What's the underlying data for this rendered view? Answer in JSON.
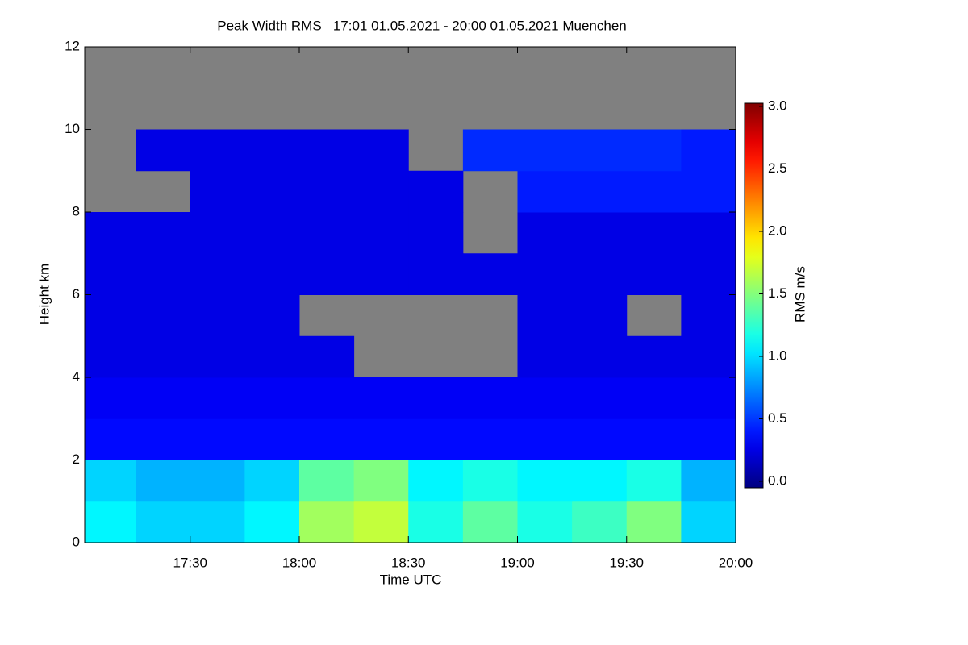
{
  "chart_data": {
    "type": "heatmap",
    "title": "Peak Width RMS   17:01 01.05.2021 - 20:00 01.05.2021 Muenchen",
    "x_label": "Time UTC",
    "y_label": "Height km",
    "colorbar_label": "RMS m/s",
    "xlim": [
      17.0167,
      20.0
    ],
    "xticks": [
      {
        "value": 17.5,
        "label": "17:30"
      },
      {
        "value": 18.0,
        "label": "18:00"
      },
      {
        "value": 18.5,
        "label": "18:30"
      },
      {
        "value": 19.0,
        "label": "19:00"
      },
      {
        "value": 19.5,
        "label": "19:30"
      },
      {
        "value": 20.0,
        "label": "20:00"
      }
    ],
    "ylim": [
      0,
      12
    ],
    "yticks": [
      0,
      2,
      4,
      6,
      8,
      10,
      12
    ],
    "clim": [
      0,
      3
    ],
    "cticks": [
      {
        "value": 0,
        "label": "0.0"
      },
      {
        "value": 0.5,
        "label": "0.5"
      },
      {
        "value": 1,
        "label": "1.0"
      },
      {
        "value": 1.5,
        "label": "1.5"
      },
      {
        "value": 2,
        "label": "2.0"
      },
      {
        "value": 2.5,
        "label": "2.5"
      },
      {
        "value": 3,
        "label": "3.0"
      }
    ],
    "missing_color": "#808080",
    "xbins": [
      17.0,
      17.25,
      17.5,
      17.75,
      18.0,
      18.25,
      18.5,
      18.75,
      19.0,
      19.25,
      19.5,
      19.75,
      20.0
    ],
    "ybins": [
      0,
      1,
      2,
      3,
      4,
      5,
      6,
      7,
      8,
      9,
      10,
      11,
      12
    ],
    "z": [
      [
        1.1,
        1.0,
        1.0,
        1.1,
        1.6,
        1.7,
        1.2,
        1.4,
        1.2,
        1.3,
        1.5,
        1.0
      ],
      [
        1.0,
        0.9,
        0.9,
        1.0,
        1.4,
        1.5,
        1.1,
        1.2,
        1.1,
        1.1,
        1.2,
        0.9
      ],
      [
        0.4,
        0.4,
        0.4,
        0.4,
        0.4,
        0.4,
        0.4,
        0.4,
        0.4,
        0.4,
        0.4,
        0.4
      ],
      [
        0.35,
        0.35,
        0.35,
        0.35,
        0.35,
        0.35,
        0.35,
        0.35,
        0.35,
        0.35,
        0.35,
        0.35
      ],
      [
        0.3,
        0.3,
        0.3,
        0.3,
        0.3,
        null,
        null,
        null,
        0.3,
        0.3,
        0.3,
        0.3
      ],
      [
        0.3,
        0.3,
        0.3,
        0.3,
        null,
        null,
        null,
        null,
        0.3,
        0.3,
        null,
        0.3
      ],
      [
        0.3,
        0.3,
        0.3,
        0.3,
        0.3,
        0.3,
        0.3,
        0.3,
        0.3,
        0.3,
        0.3,
        0.3
      ],
      [
        0.3,
        0.3,
        0.3,
        0.3,
        0.3,
        0.3,
        0.3,
        null,
        0.3,
        0.3,
        0.3,
        0.3
      ],
      [
        null,
        null,
        0.3,
        0.3,
        0.3,
        0.3,
        0.3,
        null,
        0.45,
        0.45,
        0.45,
        0.45
      ],
      [
        null,
        0.3,
        0.3,
        0.3,
        0.3,
        0.3,
        null,
        0.5,
        0.5,
        0.5,
        0.5,
        0.45
      ],
      [
        null,
        null,
        null,
        null,
        null,
        null,
        null,
        null,
        null,
        null,
        null,
        null
      ],
      [
        null,
        null,
        null,
        null,
        null,
        null,
        null,
        null,
        null,
        null,
        null,
        null
      ]
    ]
  }
}
